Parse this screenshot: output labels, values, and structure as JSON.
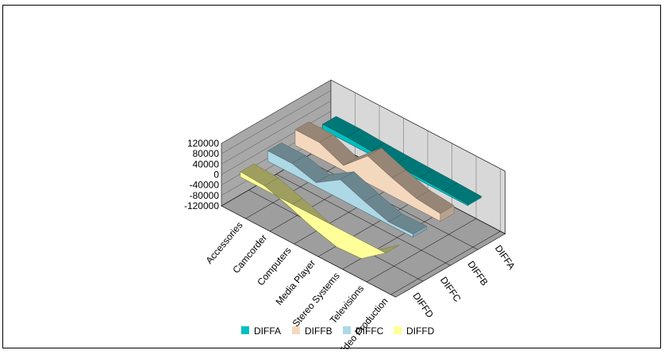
{
  "chart_data": {
    "type": "area",
    "subtype": "3d-area",
    "title": "",
    "xlabel": "",
    "ylabel": "",
    "categories": [
      "Accessories",
      "Camcorder",
      "Computers",
      "Media Player",
      "Stereo Systems",
      "Televisions",
      "Video Production"
    ],
    "series": [
      {
        "name": "DIFFA",
        "color": "#00c0c0",
        "values": [
          20000,
          20000,
          15000,
          12000,
          10000,
          8000,
          5000
        ]
      },
      {
        "name": "DIFFB",
        "color": "#f4d8be",
        "values": [
          60000,
          60000,
          20000,
          105000,
          70000,
          40000,
          30000
        ]
      },
      {
        "name": "DIFFC",
        "color": "#add8e6",
        "values": [
          40000,
          40000,
          15000,
          75000,
          40000,
          10000,
          12000
        ]
      },
      {
        "name": "DIFFD",
        "color": "#ffff99",
        "values": [
          20000,
          15000,
          -15000,
          -50000,
          -75000,
          -70000,
          0
        ]
      }
    ],
    "y_ticks": [
      "120000",
      "80000",
      "40000",
      "0",
      "-40000",
      "-80000",
      "-120000"
    ],
    "ylim": [
      -120000,
      120000
    ],
    "legend_position": "bottom",
    "grid": true
  }
}
